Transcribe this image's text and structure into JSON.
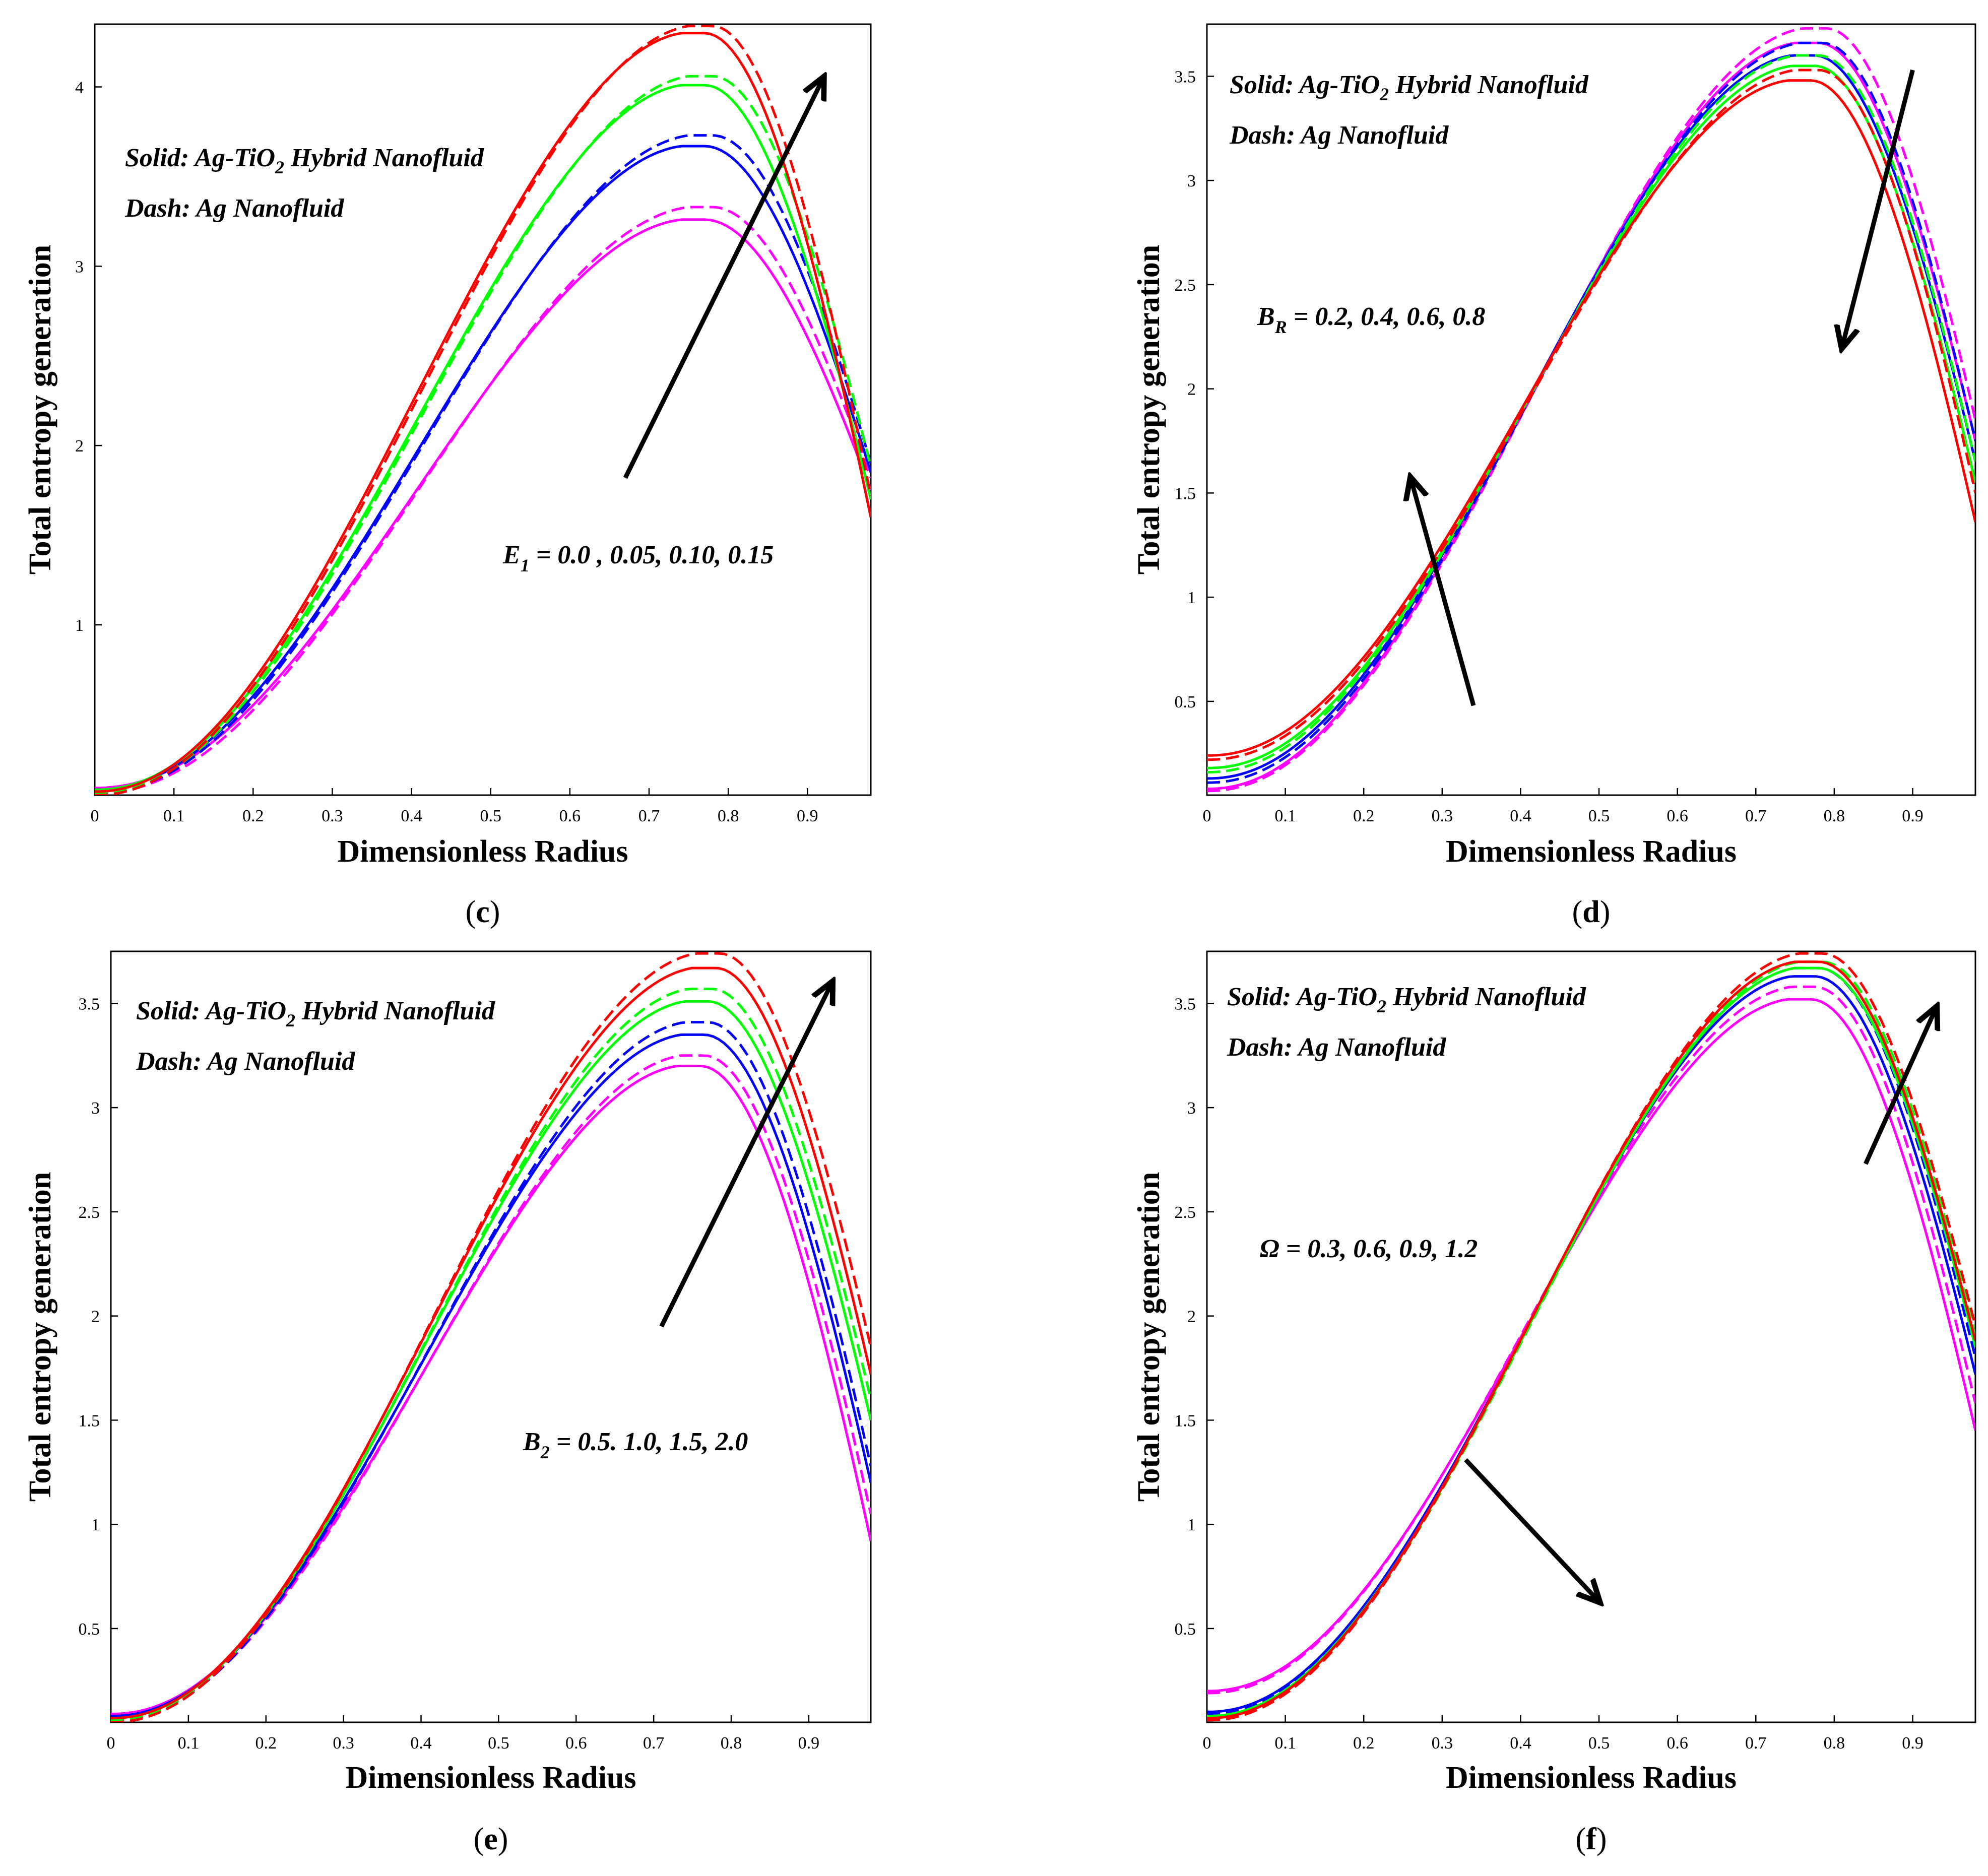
{
  "chart_data": [
    {
      "id": "c",
      "type": "line",
      "panel_label": "c",
      "xlabel": "Dimensionless Radius",
      "ylabel": "Total entropy generation",
      "xlim": [
        0,
        0.98
      ],
      "ylim": [
        0.05,
        4.35
      ],
      "xticks": [
        0,
        0.1,
        0.2,
        0.3,
        0.4,
        0.5,
        0.6,
        0.7,
        0.8,
        0.9
      ],
      "xtick_labels": [
        "0",
        "0.1",
        "0.2",
        "0.3",
        "0.4",
        "0.5",
        "0.6",
        "0.7",
        "0.8",
        "0.9"
      ],
      "yticks": [
        1,
        2,
        3,
        4
      ],
      "ytick_labels": [
        "1",
        "2",
        "3",
        "4"
      ],
      "legend": {
        "solid_label": "Solid: Ag-TiO",
        "solid_sub": "2",
        "solid_rest": " Hybrid Nanofluid",
        "dash_label": "Dash: Ag Nanofluid"
      },
      "param_label": {
        "sym": "E",
        "sub": "1",
        "rest": " = 0.0 , 0.05, 0.10, 0.15"
      },
      "arrows": [
        {
          "from": [
            0.67,
            1.82
          ],
          "to": [
            0.92,
            4.05
          ]
        }
      ],
      "series": [
        {
          "name": "E1 = 0.0, solid",
          "color": "#ff00ff",
          "dash": false,
          "y0": 0.09,
          "peak": 3.26,
          "xp": 0.77,
          "yend": 1.75
        },
        {
          "name": "E1 = 0.0, dash",
          "color": "#ff00ff",
          "dash": true,
          "y0": 0.06,
          "peak": 3.33,
          "xp": 0.78,
          "yend": 1.82
        },
        {
          "name": "E1 = 0.05, solid",
          "color": "#0000ff",
          "dash": false,
          "y0": 0.08,
          "peak": 3.67,
          "xp": 0.77,
          "yend": 1.85
        },
        {
          "name": "E1 = 0.05, dash",
          "color": "#0000ff",
          "dash": true,
          "y0": 0.06,
          "peak": 3.73,
          "xp": 0.78,
          "yend": 1.9
        },
        {
          "name": "E1 = 0.10, solid",
          "color": "#00ff00",
          "dash": false,
          "y0": 0.08,
          "peak": 4.01,
          "xp": 0.77,
          "yend": 1.7
        },
        {
          "name": "E1 = 0.10, dash",
          "color": "#00ff00",
          "dash": true,
          "y0": 0.06,
          "peak": 4.06,
          "xp": 0.78,
          "yend": 1.88
        },
        {
          "name": "E1 = 0.15, solid",
          "color": "#ff0000",
          "dash": false,
          "y0": 0.07,
          "peak": 4.3,
          "xp": 0.77,
          "yend": 1.6
        },
        {
          "name": "E1 = 0.15, dash",
          "color": "#ff0000",
          "dash": true,
          "y0": 0.05,
          "peak": 4.34,
          "xp": 0.78,
          "yend": 1.72
        }
      ]
    },
    {
      "id": "d",
      "type": "line",
      "panel_label": "d",
      "xlabel": "Dimensionless Radius",
      "ylabel": "Total entropy generation",
      "xlim": [
        0,
        0.98
      ],
      "ylim": [
        0.05,
        3.75
      ],
      "xticks": [
        0,
        0.1,
        0.2,
        0.3,
        0.4,
        0.5,
        0.6,
        0.7,
        0.8,
        0.9
      ],
      "xtick_labels": [
        "0",
        "0.1",
        "0.2",
        "0.3",
        "0.4",
        "0.5",
        "0.6",
        "0.7",
        "0.8",
        "0.9"
      ],
      "yticks": [
        0.5,
        1,
        1.5,
        2,
        2.5,
        3,
        3.5
      ],
      "ytick_labels": [
        "0.5",
        "1",
        "1.5",
        "2",
        "2.5",
        "3",
        "3.5"
      ],
      "legend": {
        "solid_label": "Solid: Ag-TiO",
        "solid_sub": "2",
        "solid_rest": " Hybrid Nanofluid",
        "dash_label": "Dash: Ag Nanofluid"
      },
      "param_label": {
        "sym": "B",
        "sub": "R",
        "rest": " = 0.2, 0.4, 0.6, 0.8"
      },
      "arrows": [
        {
          "from": [
            0.9,
            3.53
          ],
          "to": [
            0.81,
            2.2
          ]
        },
        {
          "from": [
            0.34,
            0.48
          ],
          "to": [
            0.26,
            1.57
          ]
        }
      ],
      "series": [
        {
          "name": "BR = 0.2, solid",
          "color": "#ff00ff",
          "dash": false,
          "y0": 0.08,
          "peak": 3.66,
          "xp": 0.78,
          "yend": 1.75
        },
        {
          "name": "BR = 0.2, dash",
          "color": "#ff00ff",
          "dash": true,
          "y0": 0.07,
          "peak": 3.73,
          "xp": 0.79,
          "yend": 1.85
        },
        {
          "name": "BR = 0.4, solid",
          "color": "#0000ff",
          "dash": false,
          "y0": 0.13,
          "peak": 3.6,
          "xp": 0.775,
          "yend": 1.65
        },
        {
          "name": "BR = 0.4, dash",
          "color": "#0000ff",
          "dash": true,
          "y0": 0.11,
          "peak": 3.66,
          "xp": 0.785,
          "yend": 1.75
        },
        {
          "name": "BR = 0.6, solid",
          "color": "#00ff00",
          "dash": false,
          "y0": 0.18,
          "peak": 3.55,
          "xp": 0.775,
          "yend": 1.55
        },
        {
          "name": "BR = 0.6, dash",
          "color": "#00ff00",
          "dash": true,
          "y0": 0.16,
          "peak": 3.6,
          "xp": 0.78,
          "yend": 1.65
        },
        {
          "name": "BR = 0.8, solid",
          "color": "#ff0000",
          "dash": false,
          "y0": 0.24,
          "peak": 3.48,
          "xp": 0.77,
          "yend": 1.36
        },
        {
          "name": "BR = 0.8, dash",
          "color": "#ff0000",
          "dash": true,
          "y0": 0.22,
          "peak": 3.53,
          "xp": 0.78,
          "yend": 1.5
        }
      ]
    },
    {
      "id": "e",
      "type": "line",
      "panel_label": "e",
      "xlabel": "Dimensionless Radius",
      "ylabel": "Total entropy generation",
      "xlim": [
        0,
        0.98
      ],
      "ylim": [
        0.05,
        3.75
      ],
      "xticks": [
        0,
        0.1,
        0.2,
        0.3,
        0.4,
        0.5,
        0.6,
        0.7,
        0.8,
        0.9
      ],
      "xtick_labels": [
        "0",
        "0.1",
        "0.2",
        "0.3",
        "0.4",
        "0.5",
        "0.6",
        "0.7",
        "0.8",
        "0.9"
      ],
      "yticks": [
        0.5,
        1,
        1.5,
        2,
        2.5,
        3,
        3.5
      ],
      "ytick_labels": [
        "0.5",
        "1",
        "1.5",
        "2",
        "2.5",
        "3",
        "3.5"
      ],
      "legend": {
        "solid_label": "Solid: Ag-TiO",
        "solid_sub": "2",
        "solid_rest": " Hybrid Nanofluid",
        "dash_label": "Dash: Ag Nanofluid"
      },
      "param_label": {
        "sym": "B",
        "sub": "2",
        "rest": " = 0.5. 1.0, 1.5, 2.0"
      },
      "arrows": [
        {
          "from": [
            0.71,
            1.95
          ],
          "to": [
            0.93,
            3.6
          ]
        }
      ],
      "series": [
        {
          "name": "B2 = 0.5, solid",
          "color": "#ff00ff",
          "dash": false,
          "y0": 0.09,
          "peak": 3.2,
          "xp": 0.76,
          "yend": 0.92
        },
        {
          "name": "B2 = 0.5, dash",
          "color": "#ff00ff",
          "dash": true,
          "y0": 0.07,
          "peak": 3.25,
          "xp": 0.765,
          "yend": 1.05
        },
        {
          "name": "B2 = 1.0, solid",
          "color": "#0000ff",
          "dash": false,
          "y0": 0.08,
          "peak": 3.35,
          "xp": 0.765,
          "yend": 1.2
        },
        {
          "name": "B2 = 1.0, dash",
          "color": "#0000ff",
          "dash": true,
          "y0": 0.06,
          "peak": 3.41,
          "xp": 0.77,
          "yend": 1.28
        },
        {
          "name": "B2 = 1.5, solid",
          "color": "#00ff00",
          "dash": false,
          "y0": 0.07,
          "peak": 3.51,
          "xp": 0.77,
          "yend": 1.5
        },
        {
          "name": "B2 = 1.5, dash",
          "color": "#00ff00",
          "dash": true,
          "y0": 0.06,
          "peak": 3.57,
          "xp": 0.775,
          "yend": 1.6
        },
        {
          "name": "B2 = 2.0, solid",
          "color": "#ff0000",
          "dash": false,
          "y0": 0.07,
          "peak": 3.67,
          "xp": 0.78,
          "yend": 1.72
        },
        {
          "name": "B2 = 2.0, dash",
          "color": "#ff0000",
          "dash": true,
          "y0": 0.05,
          "peak": 3.74,
          "xp": 0.785,
          "yend": 1.85
        }
      ]
    },
    {
      "id": "f",
      "type": "line",
      "panel_label": "f",
      "xlabel": "Dimensionless Radius",
      "ylabel": "Total entropy generation",
      "xlim": [
        0,
        0.98
      ],
      "ylim": [
        0.05,
        3.75
      ],
      "xticks": [
        0,
        0.1,
        0.2,
        0.3,
        0.4,
        0.5,
        0.6,
        0.7,
        0.8,
        0.9
      ],
      "xtick_labels": [
        "0",
        "0.1",
        "0.2",
        "0.3",
        "0.4",
        "0.5",
        "0.6",
        "0.7",
        "0.8",
        "0.9"
      ],
      "yticks": [
        0.5,
        1,
        1.5,
        2,
        2.5,
        3,
        3.5
      ],
      "ytick_labels": [
        "0.5",
        "1",
        "1.5",
        "2",
        "2.5",
        "3",
        "3.5"
      ],
      "legend": {
        "solid_label": "Solid: Ag-TiO",
        "solid_sub": "2",
        "solid_rest": " Hybrid Nanofluid",
        "dash_label": "Dash: Ag Nanofluid"
      },
      "param_label": {
        "sym": "Ω",
        "sub": "",
        "rest": " = 0.3, 0.6, 0.9, 1.2"
      },
      "arrows": [
        {
          "from": [
            0.84,
            2.73
          ],
          "to": [
            0.93,
            3.48
          ]
        },
        {
          "from": [
            0.33,
            1.31
          ],
          "to": [
            0.5,
            0.63
          ]
        }
      ],
      "series": [
        {
          "name": "Ω = 0.3, solid",
          "color": "#ff00ff",
          "dash": false,
          "y0": 0.2,
          "peak": 3.52,
          "xp": 0.77,
          "yend": 1.45
        },
        {
          "name": "Ω = 0.3, dash",
          "color": "#ff00ff",
          "dash": true,
          "y0": 0.19,
          "peak": 3.58,
          "xp": 0.775,
          "yend": 1.58
        },
        {
          "name": "Ω = 0.6, solid",
          "color": "#0000ff",
          "dash": false,
          "y0": 0.1,
          "peak": 3.63,
          "xp": 0.775,
          "yend": 1.72
        },
        {
          "name": "Ω = 0.6, dash",
          "color": "#0000ff",
          "dash": true,
          "y0": 0.09,
          "peak": 3.67,
          "xp": 0.78,
          "yend": 1.8
        },
        {
          "name": "Ω = 0.9, solid",
          "color": "#00ff00",
          "dash": false,
          "y0": 0.08,
          "peak": 3.67,
          "xp": 0.78,
          "yend": 1.85
        },
        {
          "name": "Ω = 0.9, dash",
          "color": "#00ff00",
          "dash": true,
          "y0": 0.07,
          "peak": 3.7,
          "xp": 0.785,
          "yend": 1.9
        },
        {
          "name": "Ω = 1.2, solid",
          "color": "#ff0000",
          "dash": false,
          "y0": 0.07,
          "peak": 3.7,
          "xp": 0.78,
          "yend": 1.88
        },
        {
          "name": "Ω = 1.2, dash",
          "color": "#ff0000",
          "dash": true,
          "y0": 0.06,
          "peak": 3.74,
          "xp": 0.785,
          "yend": 1.95
        }
      ]
    }
  ]
}
